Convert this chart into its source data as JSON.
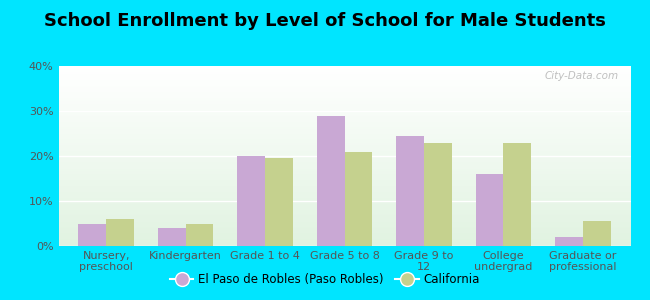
{
  "title": "School Enrollment by Level of School for Male Students",
  "categories": [
    "Nursery,\npreschool",
    "Kindergarten",
    "Grade 1 to 4",
    "Grade 5 to 8",
    "Grade 9 to\n12",
    "College\nundergrad",
    "Graduate or\nprofessional"
  ],
  "el_paso_values": [
    5.0,
    4.0,
    20.0,
    29.0,
    24.5,
    16.0,
    2.0
  ],
  "california_values": [
    6.0,
    5.0,
    19.5,
    21.0,
    23.0,
    23.0,
    5.5
  ],
  "el_paso_color": "#c9a8d4",
  "california_color": "#c5d18e",
  "background_outer": "#00e5ff",
  "ylim": [
    0,
    40
  ],
  "yticks": [
    0,
    10,
    20,
    30,
    40
  ],
  "ytick_labels": [
    "0%",
    "10%",
    "20%",
    "30%",
    "40%"
  ],
  "legend_label_1": "El Paso de Robles (Paso Robles)",
  "legend_label_2": "California",
  "bar_width": 0.35,
  "title_fontsize": 13,
  "tick_fontsize": 8,
  "watermark_text": "City-Data.com"
}
